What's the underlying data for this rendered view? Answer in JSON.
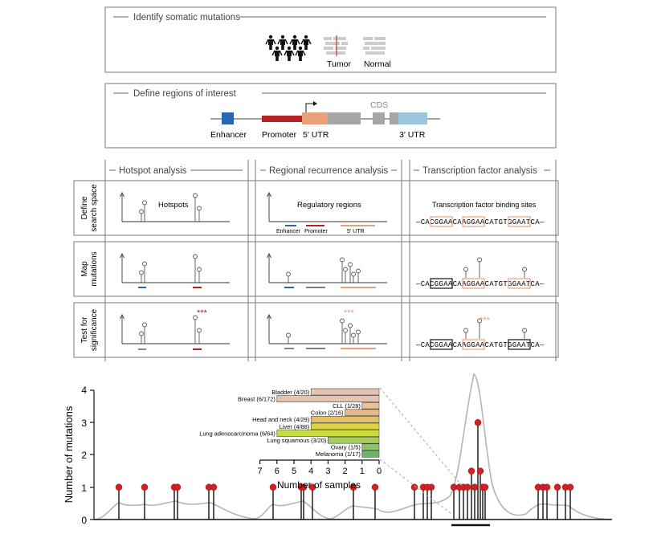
{
  "identify": {
    "title": "Identify somatic mutations",
    "tumor": "Tumor",
    "normal": "Normal"
  },
  "regions": {
    "title": "Define regions of interest",
    "cds": "CDS",
    "enhancer": "Enhancer",
    "promoter": "Promoter",
    "utr5": "5′ UTR",
    "utr3": "3′ UTR"
  },
  "analysis": {
    "headers": [
      "Hotspot analysis",
      "Regional recurrence analysis",
      "Transcription factor analysis"
    ],
    "rows": [
      {
        "line1": "Define",
        "line2": "search space"
      },
      {
        "line1": "Map",
        "line2": "mutations"
      },
      {
        "line1": "Test  for",
        "line2": "significance"
      }
    ],
    "hotspots_label": "Hotspots",
    "regulatory_label": "Regulatory regions",
    "legend": {
      "enhancer": "Enhancer",
      "promoter": "Promoter",
      "utr5": "5′ UTR"
    },
    "tfbs_label": "Transcription factor binding sites",
    "sequence": {
      "left": "—CAC",
      "m1": "GGAA",
      "mid1": "CAA",
      "m2": "GGAA",
      "mid2": "CATGT",
      "m3": "GGAA",
      "right": "TCA—"
    },
    "significance": "***"
  },
  "colors": {
    "enhancer": "#2a66b0",
    "promoter": "#b22222",
    "utr5": "#e9a07a",
    "utr3": "#9cc6e0",
    "cds": "#a6a6a6",
    "stars_hotspot": "#b22222",
    "stars_region": "#e9a07a"
  },
  "chart_data": [
    {
      "type": "scatter",
      "ylabel": "Number of mutations",
      "yticks": [
        "0",
        "1",
        "2",
        "3",
        "4"
      ],
      "ylim": [
        0,
        4
      ],
      "points": [
        {
          "x": 148,
          "y": 1
        },
        {
          "x": 180,
          "y": 1
        },
        {
          "x": 217,
          "y": 1
        },
        {
          "x": 221,
          "y": 1
        },
        {
          "x": 260,
          "y": 1
        },
        {
          "x": 266,
          "y": 1
        },
        {
          "x": 340,
          "y": 1
        },
        {
          "x": 375,
          "y": 1
        },
        {
          "x": 378,
          "y": 1
        },
        {
          "x": 389,
          "y": 1
        },
        {
          "x": 440,
          "y": 1
        },
        {
          "x": 467,
          "y": 1
        },
        {
          "x": 516,
          "y": 1
        },
        {
          "x": 527,
          "y": 1
        },
        {
          "x": 532,
          "y": 1
        },
        {
          "x": 537,
          "y": 1
        },
        {
          "x": 565,
          "y": 1
        },
        {
          "x": 572,
          "y": 1
        },
        {
          "x": 577,
          "y": 1
        },
        {
          "x": 582,
          "y": 1
        },
        {
          "x": 587,
          "y": 1.5
        },
        {
          "x": 591,
          "y": 1
        },
        {
          "x": 595,
          "y": 3
        },
        {
          "x": 598,
          "y": 1.5
        },
        {
          "x": 601,
          "y": 1
        },
        {
          "x": 604,
          "y": 1
        },
        {
          "x": 670,
          "y": 1
        },
        {
          "x": 676,
          "y": 1
        },
        {
          "x": 681,
          "y": 1
        },
        {
          "x": 694,
          "y": 1
        },
        {
          "x": 704,
          "y": 1
        },
        {
          "x": 710,
          "y": 1
        }
      ]
    },
    {
      "type": "bar",
      "orientation": "horizontal",
      "xlabel": "Number of samples",
      "xticks": [
        "7",
        "6",
        "5",
        "4",
        "3",
        "2",
        "1",
        "0"
      ],
      "xlim": [
        0,
        7
      ],
      "categories": [
        "Bladder (4/20)",
        "Breast (6/172)",
        "CLL (1/28)",
        "Colon (2/16)",
        "Head and neck (4/29)",
        "Liver (4/88)",
        "Lung adenocarcinoma (6/64)",
        "Lung squamous (3/20)",
        "Ovary (1/5)",
        "Melanoma (1/17)"
      ],
      "values": [
        4,
        6,
        1,
        2,
        4,
        4,
        6,
        3,
        1,
        1
      ],
      "colors": [
        "#e6c4b0",
        "#e6c4b0",
        "#e9c19a",
        "#e6b98a",
        "#e4c060",
        "#dfd43a",
        "#c8dc40",
        "#a8cf58",
        "#8dc468",
        "#6db36a"
      ]
    }
  ]
}
